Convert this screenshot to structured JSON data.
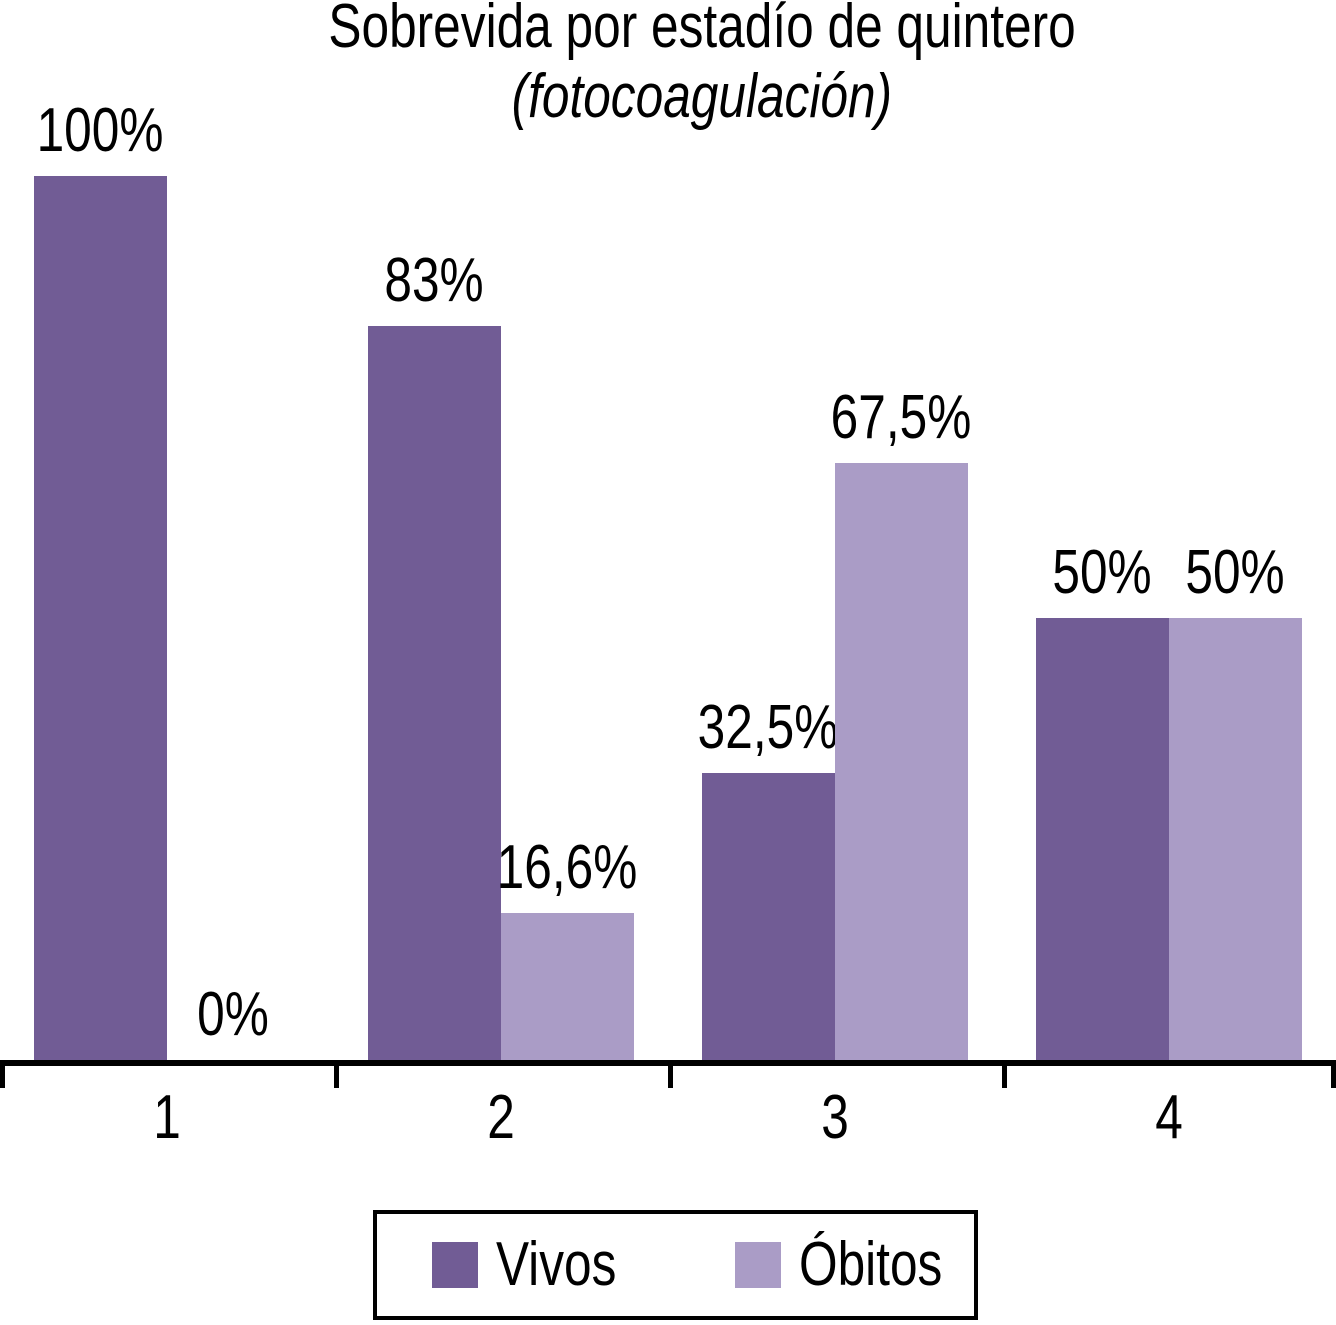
{
  "title": "Sobrevida por estadío de quintero",
  "subtitle": "(fotocoagulación)",
  "chart_data": {
    "type": "bar",
    "title": "Sobrevida por estadío de quintero",
    "subtitle": "(fotocoagulación)",
    "xlabel": "",
    "ylabel": "",
    "ylim": [
      0,
      100
    ],
    "grid": false,
    "legend_position": "bottom",
    "categories": [
      "1",
      "2",
      "3",
      "4"
    ],
    "series": [
      {
        "name": "Vivos",
        "color": "#715C95",
        "values": [
          100,
          83,
          32.5,
          50
        ],
        "labels": [
          "100%",
          "83%",
          "32,5%",
          "50%"
        ]
      },
      {
        "name": "Óbitos",
        "color": "#AA9CC6",
        "values": [
          0,
          16.6,
          67.5,
          50
        ],
        "labels": [
          "0%",
          "16,6%",
          "67,5%",
          "50%"
        ]
      }
    ]
  },
  "legend": {
    "items": [
      {
        "label": "Vivos",
        "color": "#715C95"
      },
      {
        "label": "Óbitos",
        "color": "#AA9CC6"
      }
    ]
  },
  "colors": {
    "background": "#FFFFFF",
    "axis": "#000000",
    "text": "#000000",
    "vivos": "#715C95",
    "obitos": "#AA9CC6"
  }
}
